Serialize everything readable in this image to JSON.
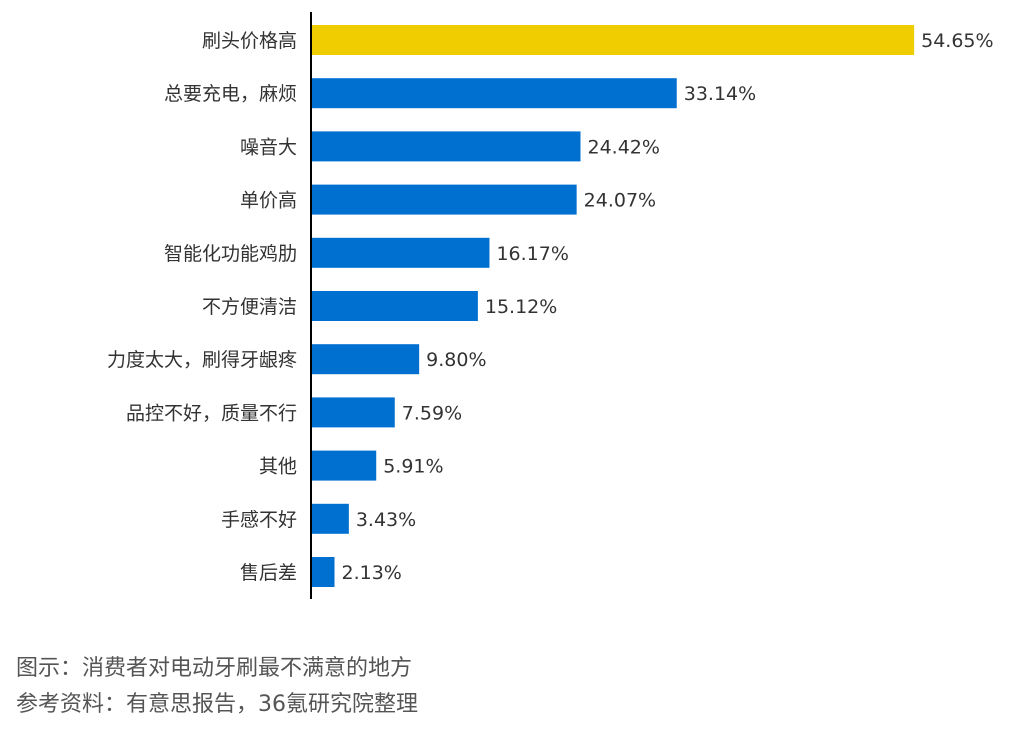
{
  "chart_data": {
    "type": "bar",
    "orientation": "horizontal",
    "categories": [
      "刷头价格高",
      "总要充电，麻烦",
      "噪音大",
      "单价高",
      "智能化功能鸡肋",
      "不方便清洁",
      "力度太大，刷得牙龈疼",
      "品控不好，质量不行",
      "其他",
      "手感不好",
      "售后差"
    ],
    "values": [
      54.65,
      33.14,
      24.42,
      24.07,
      16.17,
      15.12,
      9.8,
      7.59,
      5.91,
      3.43,
      2.13
    ],
    "value_labels": [
      "54.65%",
      "33.14%",
      "24.42%",
      "24.07%",
      "16.17%",
      "15.12%",
      "9.80%",
      "7.59%",
      "5.91%",
      "3.43%",
      "2.13%"
    ],
    "highlight_index": 0,
    "colors": {
      "bar": "#0070D0",
      "highlight": "#F0CD00",
      "axis": "#000000",
      "label": "#333333"
    },
    "xlim": [
      0,
      55
    ],
    "grid": false,
    "legend": "none"
  },
  "footer": {
    "caption": "图示：消费者对电动牙刷最不满意的地方",
    "source": "参考资料：有意思报告，36氪研究院整理"
  }
}
